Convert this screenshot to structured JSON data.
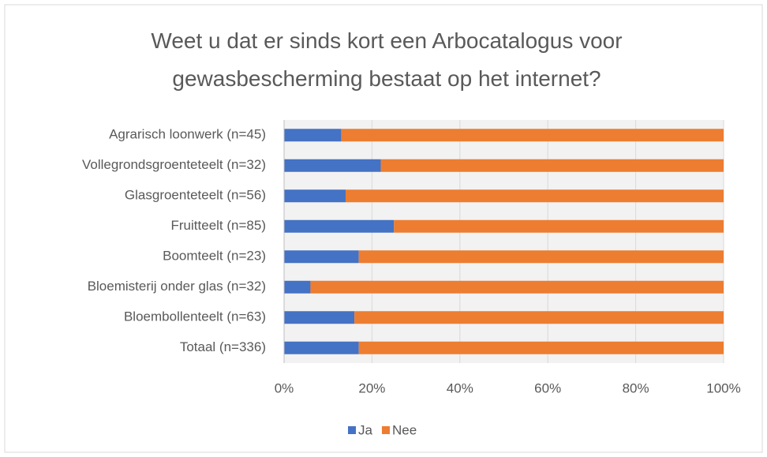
{
  "chart_data": {
    "type": "stacked_bar_horizontal",
    "title": "Weet u dat er sinds kort een Arbocatalogus voor gewasbescherming bestaat op het internet?",
    "categories": [
      "Agrarisch loonwerk (n=45)",
      "Vollegrondsgroenteteelt (n=32)",
      "Glasgroenteteelt (n=56)",
      "Fruitteelt (n=85)",
      "Boomteelt (n=23)",
      "Bloemisterij onder glas (n=32)",
      "Bloembollenteelt (n=63)",
      "Totaal (n=336)"
    ],
    "series": [
      {
        "name": "Ja",
        "color": "#4472c4",
        "values": [
          13,
          22,
          14,
          25,
          17,
          6,
          16,
          17
        ]
      },
      {
        "name": "Nee",
        "color": "#ed7d31",
        "values": [
          87,
          78,
          86,
          75,
          83,
          94,
          84,
          83
        ]
      }
    ],
    "xlim": [
      0,
      100
    ],
    "xticks": [
      {
        "value": 0,
        "label": "0%"
      },
      {
        "value": 20,
        "label": "20%"
      },
      {
        "value": 40,
        "label": "40%"
      },
      {
        "value": 60,
        "label": "60%"
      },
      {
        "value": 80,
        "label": "80%"
      },
      {
        "value": 100,
        "label": "100%"
      }
    ],
    "grid": true,
    "legend": "bottom"
  }
}
